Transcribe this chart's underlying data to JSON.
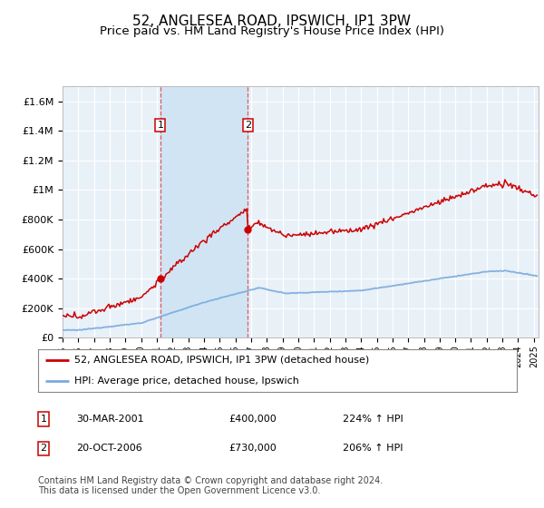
{
  "title": "52, ANGLESEA ROAD, IPSWICH, IP1 3PW",
  "subtitle": "Price paid vs. HM Land Registry's House Price Index (HPI)",
  "title_fontsize": 11,
  "subtitle_fontsize": 9.5,
  "ylim": [
    0,
    1700000
  ],
  "yticks": [
    0,
    200000,
    400000,
    600000,
    800000,
    1000000,
    1200000,
    1400000,
    1600000
  ],
  "ytick_labels": [
    "£0",
    "£200K",
    "£400K",
    "£600K",
    "£800K",
    "£1M",
    "£1.2M",
    "£1.4M",
    "£1.6M"
  ],
  "background_color": "#ffffff",
  "plot_bg_color": "#e8f0f8",
  "grid_color": "#ffffff",
  "hpi_line_color": "#7aaadd",
  "price_line_color": "#cc0000",
  "sale_vline_color": "#dd4444",
  "span_color": "#d0e4f4",
  "legend_label_price": "52, ANGLESEA ROAD, IPSWICH, IP1 3PW (detached house)",
  "legend_label_hpi": "HPI: Average price, detached house, Ipswich",
  "sale1_date": 2001.23,
  "sale1_price": 400000,
  "sale2_date": 2006.8,
  "sale2_price": 730000,
  "footer": "Contains HM Land Registry data © Crown copyright and database right 2024.\nThis data is licensed under the Open Government Licence v3.0.",
  "table_row1": [
    "1",
    "30-MAR-2001",
    "£400,000",
    "224% ↑ HPI"
  ],
  "table_row2": [
    "2",
    "20-OCT-2006",
    "£730,000",
    "206% ↑ HPI"
  ],
  "xlim_left": 1995,
  "xlim_right": 2025.3
}
